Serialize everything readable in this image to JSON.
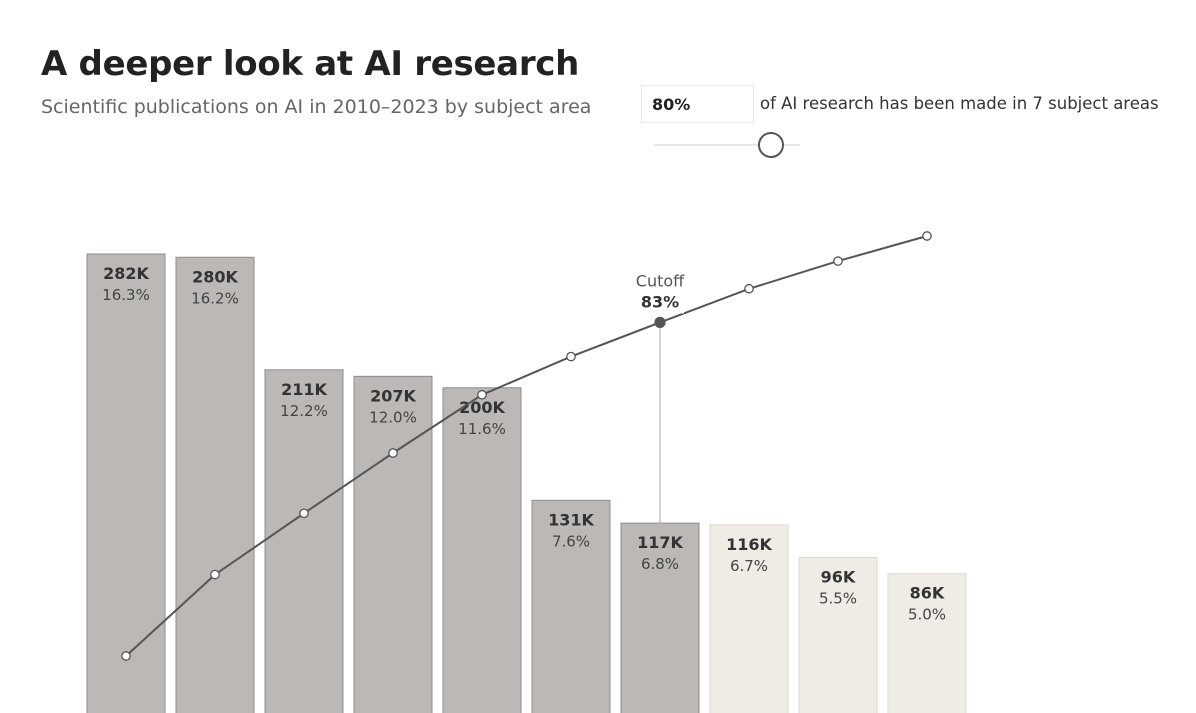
{
  "header": {
    "title": "A deeper look at AI research",
    "subtitle": "Scientific publications on AI in 2010–2023 by subject area"
  },
  "controls": {
    "threshold_value": "80%",
    "threshold_caption": "of AI research has been made in 7 subject areas",
    "slider_level": 0.8
  },
  "chart_data": {
    "type": "bar",
    "values": [
      282,
      280,
      211,
      207,
      200,
      131,
      117,
      116,
      96,
      86
    ],
    "value_labels": [
      "282K",
      "280K",
      "211K",
      "207K",
      "200K",
      "131K",
      "117K",
      "116K",
      "96K",
      "86K"
    ],
    "share_labels": [
      "16.3%",
      "16.2%",
      "12.2%",
      "12.0%",
      "11.6%",
      "7.6%",
      "6.8%",
      "6.7%",
      "5.5%",
      "5.0%"
    ],
    "cumulative_share": [
      16.3,
      32.5,
      44.7,
      56.7,
      68.3,
      75.9,
      82.7,
      89.4,
      94.9,
      99.9
    ],
    "highlighted_count": 7,
    "cutoff_index": 6,
    "cutoff_label": "Cutoff",
    "cutoff_value": "83%",
    "colors": {
      "highlighted_fill": "#bbb8b5",
      "highlighted_stroke": "#8f8c89",
      "muted_fill": "#efebe5",
      "muted_stroke": "#dcd7d0",
      "line": "#555555"
    }
  }
}
